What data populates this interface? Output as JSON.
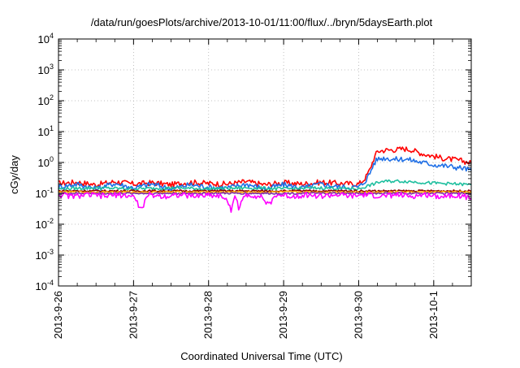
{
  "chart_data": {
    "type": "line",
    "title": "/data/run/goesPlots/archive/2013-10-01/11:00/flux/../bryn/5daysEarth.plot",
    "xlabel": "Coordinated Universal Time (UTC)",
    "ylabel": "cGy/day",
    "yscale": "log",
    "ylim": [
      0.0001,
      10000
    ],
    "xlim_days": [
      0,
      5.5
    ],
    "grid": true,
    "x_tick_labels": [
      "2013-9-26",
      "2013-9-27",
      "2013-9-28",
      "2013-9-29",
      "2013-9-30",
      "2013-10-1"
    ],
    "x_tick_days": [
      0,
      1,
      2,
      3,
      4,
      5
    ],
    "y_ticks": [
      {
        "base": "10",
        "exp": "-4",
        "value": 0.0001
      },
      {
        "base": "10",
        "exp": "-3",
        "value": 0.001
      },
      {
        "base": "10",
        "exp": "-2",
        "value": 0.01
      },
      {
        "base": "10",
        "exp": "-1",
        "value": 0.1
      },
      {
        "base": "10",
        "exp": "0",
        "value": 1
      },
      {
        "base": "10",
        "exp": "1",
        "value": 10
      },
      {
        "base": "10",
        "exp": "2",
        "value": 100
      },
      {
        "base": "10",
        "exp": "3",
        "value": 1000
      },
      {
        "base": "10",
        "exp": "4",
        "value": 10000
      }
    ],
    "series": [
      {
        "name": "red",
        "color": "#ff0000",
        "points": [
          [
            0,
            0.21
          ],
          [
            0.25,
            0.23
          ],
          [
            0.5,
            0.19
          ],
          [
            0.75,
            0.24
          ],
          [
            1,
            0.2
          ],
          [
            1.25,
            0.22
          ],
          [
            1.5,
            0.19
          ],
          [
            1.75,
            0.23
          ],
          [
            2,
            0.21
          ],
          [
            2.25,
            0.2
          ],
          [
            2.5,
            0.24
          ],
          [
            2.75,
            0.19
          ],
          [
            3,
            0.22
          ],
          [
            3.25,
            0.2
          ],
          [
            3.5,
            0.23
          ],
          [
            3.75,
            0.21
          ],
          [
            4,
            0.2
          ],
          [
            4.05,
            0.25
          ],
          [
            4.1,
            0.35
          ],
          [
            4.15,
            0.6
          ],
          [
            4.2,
            1.3
          ],
          [
            4.25,
            2.3
          ],
          [
            4.35,
            2.5
          ],
          [
            4.5,
            2.6
          ],
          [
            4.6,
            2.8
          ],
          [
            4.7,
            2.6
          ],
          [
            4.8,
            2.1
          ],
          [
            4.9,
            1.8
          ],
          [
            5,
            1.6
          ],
          [
            5.1,
            1.4
          ],
          [
            5.2,
            1.3
          ],
          [
            5.3,
            1.2
          ],
          [
            5.4,
            1.1
          ],
          [
            5.5,
            0.95
          ]
        ]
      },
      {
        "name": "blue",
        "color": "#1f6fe6",
        "points": [
          [
            0,
            0.16
          ],
          [
            0.25,
            0.2
          ],
          [
            0.5,
            0.14
          ],
          [
            0.75,
            0.21
          ],
          [
            1,
            0.15
          ],
          [
            1.25,
            0.2
          ],
          [
            1.5,
            0.14
          ],
          [
            1.75,
            0.19
          ],
          [
            2,
            0.16
          ],
          [
            2.25,
            0.15
          ],
          [
            2.5,
            0.2
          ],
          [
            2.75,
            0.14
          ],
          [
            3,
            0.19
          ],
          [
            3.25,
            0.15
          ],
          [
            3.5,
            0.2
          ],
          [
            3.75,
            0.16
          ],
          [
            4,
            0.16
          ],
          [
            4.05,
            0.2
          ],
          [
            4.1,
            0.28
          ],
          [
            4.15,
            0.45
          ],
          [
            4.2,
            0.9
          ],
          [
            4.25,
            1.3
          ],
          [
            4.35,
            1.4
          ],
          [
            4.5,
            1.25
          ],
          [
            4.6,
            1.3
          ],
          [
            4.7,
            1.2
          ],
          [
            4.8,
            1.05
          ],
          [
            4.9,
            0.95
          ],
          [
            5,
            0.85
          ],
          [
            5.1,
            0.8
          ],
          [
            5.2,
            0.75
          ],
          [
            5.3,
            0.7
          ],
          [
            5.4,
            0.65
          ],
          [
            5.5,
            0.55
          ]
        ]
      },
      {
        "name": "teal",
        "color": "#1fbf9f",
        "points": [
          [
            0,
            0.14
          ],
          [
            0.5,
            0.15
          ],
          [
            1,
            0.14
          ],
          [
            1.5,
            0.15
          ],
          [
            2,
            0.14
          ],
          [
            2.5,
            0.15
          ],
          [
            3,
            0.14
          ],
          [
            3.5,
            0.15
          ],
          [
            4,
            0.14
          ],
          [
            4.2,
            0.2
          ],
          [
            4.3,
            0.24
          ],
          [
            4.5,
            0.25
          ],
          [
            4.7,
            0.24
          ],
          [
            4.9,
            0.22
          ],
          [
            5.1,
            0.21
          ],
          [
            5.3,
            0.2
          ],
          [
            5.5,
            0.19
          ]
        ]
      },
      {
        "name": "dark-red",
        "color": "#8b0000",
        "points": [
          [
            0,
            0.12
          ],
          [
            0.5,
            0.12
          ],
          [
            1,
            0.12
          ],
          [
            1.5,
            0.12
          ],
          [
            2,
            0.12
          ],
          [
            2.5,
            0.12
          ],
          [
            3,
            0.12
          ],
          [
            3.5,
            0.12
          ],
          [
            4,
            0.12
          ],
          [
            4.5,
            0.12
          ],
          [
            5,
            0.12
          ],
          [
            5.5,
            0.12
          ]
        ]
      },
      {
        "name": "orange",
        "color": "#ffa500",
        "points": [
          [
            0,
            0.11
          ],
          [
            0.5,
            0.11
          ],
          [
            1,
            0.11
          ],
          [
            1.5,
            0.11
          ],
          [
            2,
            0.11
          ],
          [
            2.5,
            0.11
          ],
          [
            3,
            0.11
          ],
          [
            3.5,
            0.11
          ],
          [
            4,
            0.11
          ],
          [
            4.5,
            0.11
          ],
          [
            5,
            0.11
          ],
          [
            5.5,
            0.11
          ]
        ]
      },
      {
        "name": "purple",
        "color": "#7b2fa8",
        "points": [
          [
            0,
            0.1
          ],
          [
            0.5,
            0.1
          ],
          [
            1,
            0.1
          ],
          [
            1.5,
            0.1
          ],
          [
            2,
            0.1
          ],
          [
            2.5,
            0.1
          ],
          [
            3,
            0.1
          ],
          [
            3.5,
            0.1
          ],
          [
            4,
            0.1
          ],
          [
            4.5,
            0.1
          ],
          [
            5,
            0.1
          ],
          [
            5.5,
            0.1
          ]
        ]
      },
      {
        "name": "magenta",
        "color": "#ff00ff",
        "points": [
          [
            0,
            0.09
          ],
          [
            0.2,
            0.08
          ],
          [
            0.4,
            0.09
          ],
          [
            0.6,
            0.08
          ],
          [
            0.8,
            0.09
          ],
          [
            1,
            0.08
          ],
          [
            1.1,
            0.03
          ],
          [
            1.2,
            0.09
          ],
          [
            1.4,
            0.08
          ],
          [
            1.6,
            0.09
          ],
          [
            1.8,
            0.08
          ],
          [
            2,
            0.09
          ],
          [
            2.2,
            0.08
          ],
          [
            2.3,
            0.03
          ],
          [
            2.35,
            0.09
          ],
          [
            2.4,
            0.035
          ],
          [
            2.5,
            0.09
          ],
          [
            2.7,
            0.08
          ],
          [
            2.8,
            0.04
          ],
          [
            2.9,
            0.09
          ],
          [
            3.1,
            0.08
          ],
          [
            3.3,
            0.09
          ],
          [
            3.5,
            0.08
          ],
          [
            3.7,
            0.09
          ],
          [
            3.9,
            0.08
          ],
          [
            4.1,
            0.09
          ],
          [
            4.3,
            0.08
          ],
          [
            4.5,
            0.09
          ],
          [
            4.7,
            0.08
          ],
          [
            4.9,
            0.09
          ],
          [
            5.1,
            0.08
          ],
          [
            5.3,
            0.09
          ],
          [
            5.5,
            0.07
          ]
        ]
      }
    ]
  }
}
